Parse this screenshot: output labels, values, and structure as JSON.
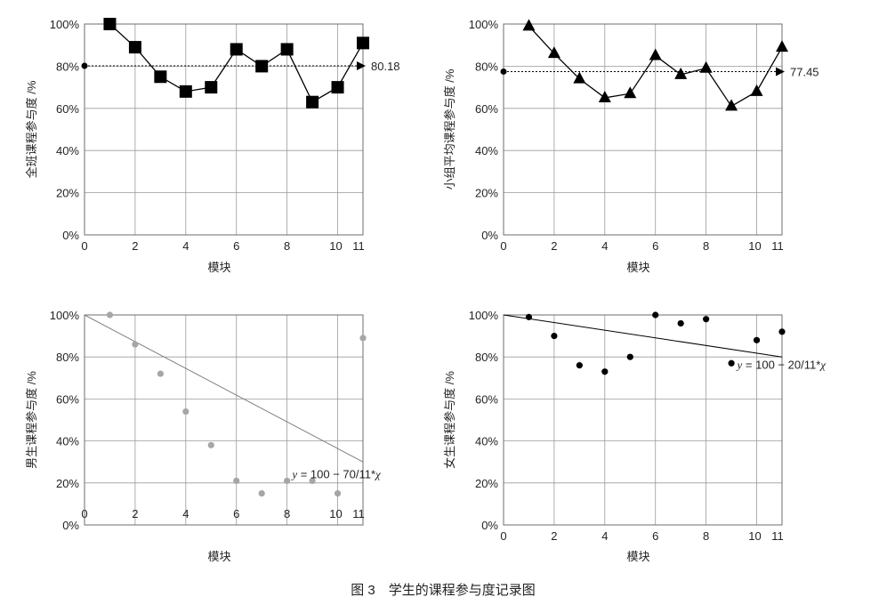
{
  "figure_caption": "图 3　学生的课程参与度记录图",
  "chart_data": [
    {
      "id": "class",
      "type": "line",
      "xlabel": "模块",
      "ylabel": "全班课程参与度 /%",
      "x_ticks": [
        "0",
        "2",
        "4",
        "6",
        "8",
        "10",
        "11"
      ],
      "y_ticks": [
        "0%",
        "20%",
        "40%",
        "60%",
        "80%",
        "100%"
      ],
      "xlim": [
        0,
        11
      ],
      "ylim": [
        0,
        100
      ],
      "x": [
        1,
        2,
        3,
        4,
        5,
        6,
        7,
        8,
        9,
        10,
        11
      ],
      "values": [
        100,
        89,
        75,
        68,
        70,
        88,
        80,
        88,
        63,
        70,
        91
      ],
      "marker": "square",
      "reference": {
        "value": 80.18,
        "label": "80.18",
        "style": "dotted"
      }
    },
    {
      "id": "group",
      "type": "line",
      "xlabel": "模块",
      "ylabel": "小组平均课程参与度 /%",
      "x_ticks": [
        "0",
        "2",
        "4",
        "6",
        "8",
        "10",
        "11"
      ],
      "y_ticks": [
        "0%",
        "20%",
        "40%",
        "60%",
        "80%",
        "100%"
      ],
      "xlim": [
        0,
        11
      ],
      "ylim": [
        0,
        100
      ],
      "x": [
        1,
        2,
        3,
        4,
        5,
        6,
        7,
        8,
        9,
        10,
        11
      ],
      "values": [
        99,
        86,
        74,
        65,
        67,
        85,
        76,
        79,
        61,
        68,
        89
      ],
      "marker": "triangle",
      "reference": {
        "value": 77.45,
        "label": "77.45",
        "style": "dotted"
      }
    },
    {
      "id": "boys",
      "type": "scatter",
      "xlabel": "模块",
      "ylabel": "男生课程参与度 /%",
      "x_ticks": [
        "0",
        "2",
        "4",
        "6",
        "8",
        "10",
        "11"
      ],
      "y_ticks": [
        "0%",
        "20%",
        "40%",
        "60%",
        "80%",
        "100%"
      ],
      "xlim": [
        0,
        11
      ],
      "ylim": [
        0,
        100
      ],
      "x": [
        1,
        2,
        3,
        4,
        5,
        6,
        7,
        8,
        9,
        10,
        11
      ],
      "values": [
        100,
        86,
        72,
        54,
        38,
        21,
        15,
        21,
        21,
        15,
        89
      ],
      "color": "#a6a6a6",
      "trendline": {
        "intercept": 100,
        "slope": -6.3636,
        "label_var": "y",
        "label_rest": " = 100 − 70/11*",
        "label_tail": "χ"
      }
    },
    {
      "id": "girls",
      "type": "scatter",
      "xlabel": "模块",
      "ylabel": "女生课程参与度 /%",
      "x_ticks": [
        "0",
        "2",
        "4",
        "6",
        "8",
        "10",
        "11"
      ],
      "y_ticks": [
        "0%",
        "20%",
        "40%",
        "60%",
        "80%",
        "100%"
      ],
      "xlim": [
        0,
        11
      ],
      "ylim": [
        0,
        100
      ],
      "x": [
        1,
        2,
        3,
        4,
        5,
        6,
        7,
        8,
        9,
        10,
        11
      ],
      "values": [
        99,
        90,
        76,
        73,
        80,
        100,
        96,
        98,
        77,
        88,
        92
      ],
      "color": "#000000",
      "trendline": {
        "intercept": 100,
        "slope": -1.8182,
        "label_var": "y",
        "label_rest": " = 100 − 20/11*",
        "label_tail": "χ"
      }
    }
  ]
}
